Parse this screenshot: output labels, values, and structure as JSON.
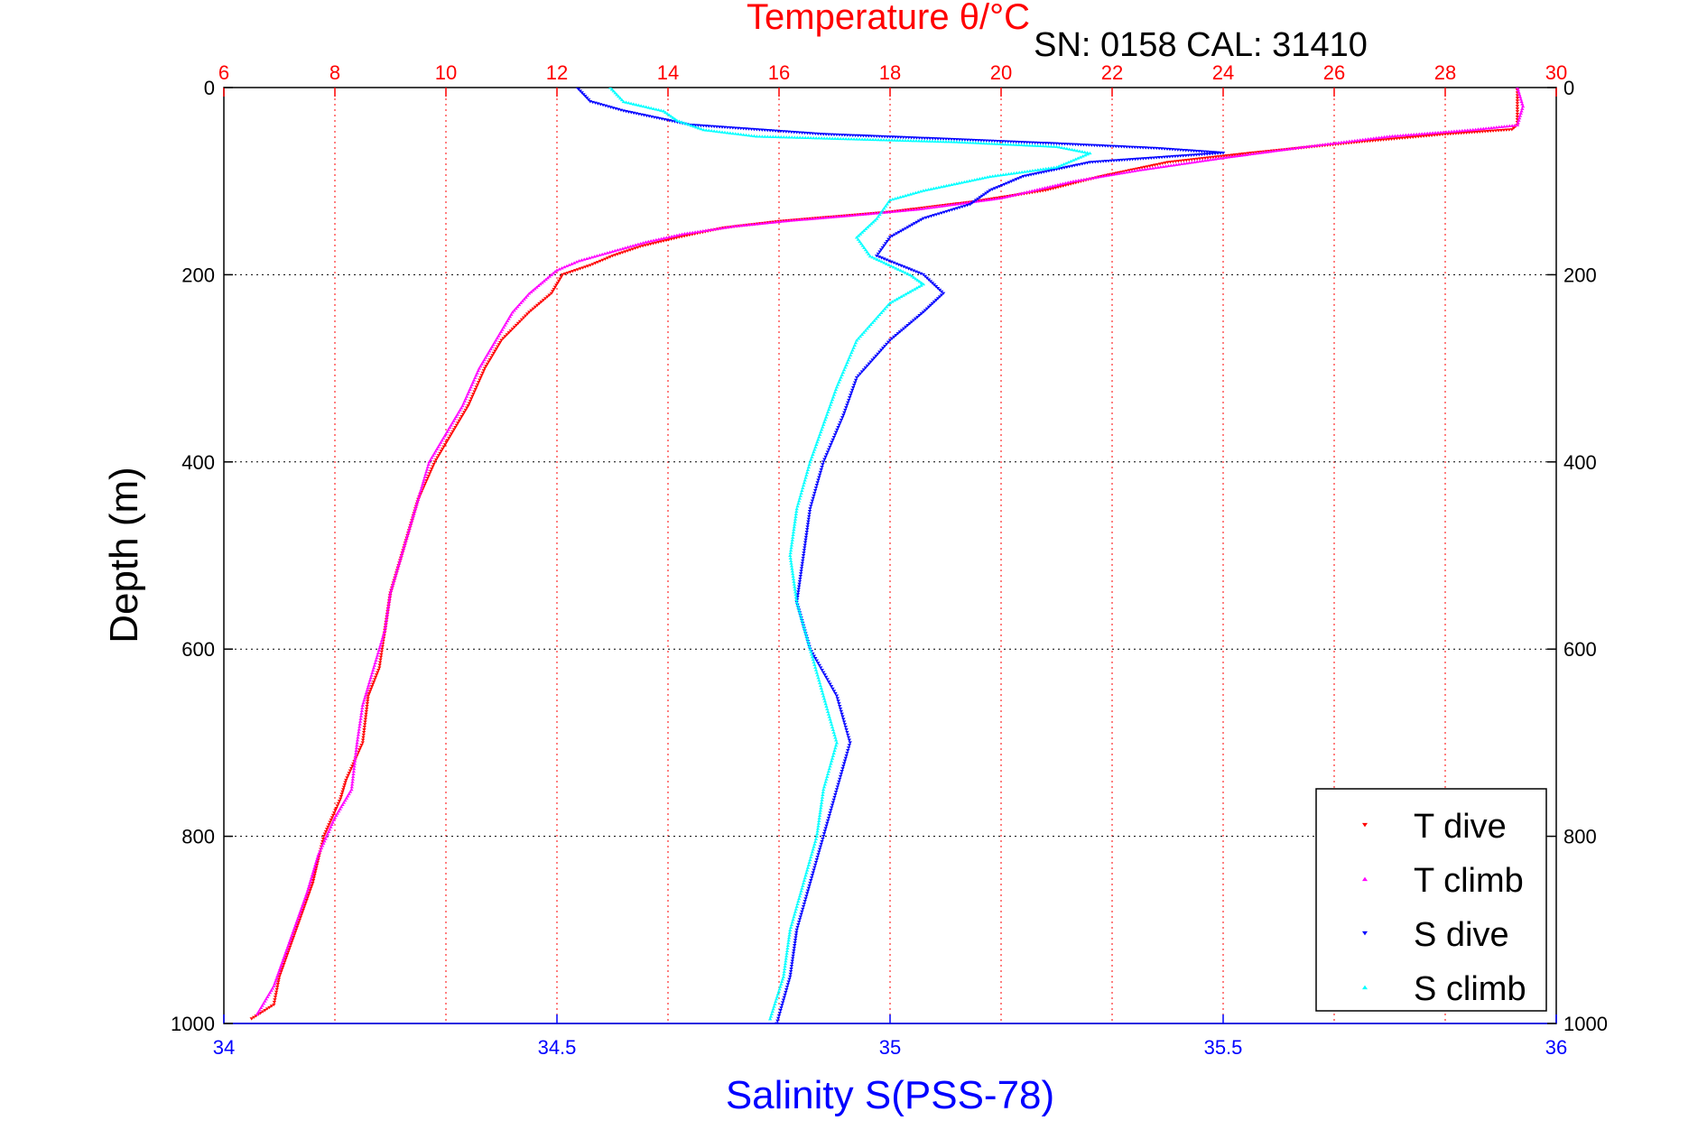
{
  "chart_data": {
    "type": "scatter",
    "title": "Temperature θ/°C",
    "subtitle": "SN: 0158  CAL: 31410",
    "xlabel": "Salinity S(PSS-78)",
    "ylabel": "Depth (m)",
    "temperature_axis": {
      "min": 6,
      "max": 30,
      "ticks": [
        "6",
        "8",
        "10",
        "12",
        "14",
        "16",
        "18",
        "20",
        "22",
        "24",
        "26",
        "28",
        "30"
      ],
      "color": "#ff0000"
    },
    "salinity_axis": {
      "min": 34,
      "max": 36,
      "ticks": [
        "34",
        "34.5",
        "35",
        "35.5",
        "36"
      ],
      "color": "#0000ff"
    },
    "depth_axis": {
      "min": 0,
      "max": 1000,
      "reversed": true,
      "ticks": [
        "0",
        "200",
        "400",
        "600",
        "800",
        "1000"
      ]
    },
    "grid": true,
    "legend": {
      "position": "bottom-right"
    },
    "series": [
      {
        "name": "T dive",
        "axis": "temperature",
        "color": "#ff0000",
        "marker": "triangle-down",
        "points": [
          [
            29.3,
            0
          ],
          [
            29.3,
            20
          ],
          [
            29.3,
            40
          ],
          [
            29.2,
            45
          ],
          [
            28.0,
            50
          ],
          [
            26.5,
            58
          ],
          [
            24.5,
            70
          ],
          [
            23.0,
            80
          ],
          [
            21.8,
            95
          ],
          [
            20.8,
            110
          ],
          [
            19.5,
            122
          ],
          [
            18.0,
            133
          ],
          [
            17.0,
            138
          ],
          [
            16.0,
            143
          ],
          [
            15.0,
            150
          ],
          [
            14.2,
            160
          ],
          [
            13.5,
            170
          ],
          [
            13.0,
            180
          ],
          [
            12.6,
            190
          ],
          [
            12.1,
            200
          ],
          [
            11.9,
            220
          ],
          [
            11.5,
            240
          ],
          [
            11.0,
            270
          ],
          [
            10.7,
            300
          ],
          [
            10.4,
            340
          ],
          [
            10.1,
            370
          ],
          [
            9.8,
            400
          ],
          [
            9.5,
            440
          ],
          [
            9.4,
            460
          ],
          [
            9.2,
            500
          ],
          [
            9.0,
            540
          ],
          [
            8.9,
            580
          ],
          [
            8.8,
            620
          ],
          [
            8.6,
            650
          ],
          [
            8.5,
            700
          ],
          [
            8.2,
            740
          ],
          [
            8.1,
            760
          ],
          [
            7.8,
            800
          ],
          [
            7.6,
            850
          ],
          [
            7.3,
            900
          ],
          [
            7.0,
            950
          ],
          [
            6.9,
            980
          ],
          [
            6.5,
            995
          ]
        ]
      },
      {
        "name": "T climb",
        "axis": "temperature",
        "color": "#ff00ff",
        "marker": "triangle-up",
        "points": [
          [
            29.3,
            0
          ],
          [
            29.4,
            20
          ],
          [
            29.3,
            40
          ],
          [
            28.5,
            45
          ],
          [
            27.0,
            52
          ],
          [
            25.5,
            63
          ],
          [
            24.0,
            75
          ],
          [
            22.5,
            88
          ],
          [
            21.3,
            100
          ],
          [
            20.0,
            118
          ],
          [
            18.5,
            130
          ],
          [
            17.2,
            137
          ],
          [
            16.2,
            142
          ],
          [
            15.2,
            148
          ],
          [
            14.3,
            156
          ],
          [
            13.6,
            165
          ],
          [
            13.0,
            175
          ],
          [
            12.4,
            185
          ],
          [
            12.0,
            195
          ],
          [
            11.8,
            205
          ],
          [
            11.5,
            220
          ],
          [
            11.2,
            240
          ],
          [
            10.9,
            270
          ],
          [
            10.6,
            300
          ],
          [
            10.3,
            340
          ],
          [
            10.0,
            370
          ],
          [
            9.7,
            400
          ],
          [
            9.5,
            440
          ],
          [
            9.4,
            460
          ],
          [
            9.2,
            500
          ],
          [
            9.0,
            540
          ],
          [
            8.9,
            580
          ],
          [
            8.7,
            620
          ],
          [
            8.5,
            660
          ],
          [
            8.4,
            700
          ],
          [
            8.3,
            750
          ],
          [
            8.0,
            780
          ],
          [
            7.7,
            820
          ],
          [
            7.5,
            860
          ],
          [
            7.2,
            910
          ],
          [
            6.9,
            960
          ],
          [
            6.6,
            990
          ]
        ]
      },
      {
        "name": "S dive",
        "axis": "salinity",
        "color": "#0000ff",
        "marker": "triangle-down",
        "points": [
          [
            34.53,
            0
          ],
          [
            34.55,
            15
          ],
          [
            34.6,
            25
          ],
          [
            34.7,
            40
          ],
          [
            34.9,
            50
          ],
          [
            35.08,
            55
          ],
          [
            35.25,
            60
          ],
          [
            35.4,
            65
          ],
          [
            35.5,
            70
          ],
          [
            35.3,
            80
          ],
          [
            35.2,
            95
          ],
          [
            35.15,
            110
          ],
          [
            35.12,
            125
          ],
          [
            35.05,
            140
          ],
          [
            35.0,
            160
          ],
          [
            34.98,
            180
          ],
          [
            35.05,
            200
          ],
          [
            35.08,
            220
          ],
          [
            35.05,
            240
          ],
          [
            35.0,
            270
          ],
          [
            34.95,
            310
          ],
          [
            34.93,
            350
          ],
          [
            34.9,
            400
          ],
          [
            34.88,
            450
          ],
          [
            34.87,
            500
          ],
          [
            34.86,
            550
          ],
          [
            34.88,
            600
          ],
          [
            34.92,
            650
          ],
          [
            34.94,
            700
          ],
          [
            34.92,
            750
          ],
          [
            34.9,
            800
          ],
          [
            34.88,
            850
          ],
          [
            34.86,
            900
          ],
          [
            34.85,
            950
          ],
          [
            34.83,
            1000
          ]
        ]
      },
      {
        "name": "S climb",
        "axis": "salinity",
        "color": "#00ffff",
        "marker": "triangle-up",
        "points": [
          [
            34.58,
            0
          ],
          [
            34.6,
            15
          ],
          [
            34.66,
            25
          ],
          [
            34.68,
            35
          ],
          [
            34.72,
            45
          ],
          [
            34.8,
            52
          ],
          [
            34.95,
            55
          ],
          [
            35.1,
            58
          ],
          [
            35.25,
            63
          ],
          [
            35.3,
            70
          ],
          [
            35.25,
            85
          ],
          [
            35.15,
            95
          ],
          [
            35.05,
            110
          ],
          [
            35.0,
            120
          ],
          [
            34.98,
            140
          ],
          [
            34.95,
            160
          ],
          [
            34.97,
            180
          ],
          [
            35.03,
            200
          ],
          [
            35.05,
            210
          ],
          [
            35.0,
            230
          ],
          [
            34.95,
            270
          ],
          [
            34.92,
            320
          ],
          [
            34.9,
            360
          ],
          [
            34.88,
            400
          ],
          [
            34.86,
            450
          ],
          [
            34.85,
            500
          ],
          [
            34.86,
            550
          ],
          [
            34.88,
            600
          ],
          [
            34.9,
            650
          ],
          [
            34.92,
            700
          ],
          [
            34.9,
            750
          ],
          [
            34.89,
            800
          ],
          [
            34.87,
            850
          ],
          [
            34.85,
            900
          ],
          [
            34.84,
            950
          ],
          [
            34.82,
            995
          ]
        ]
      }
    ]
  }
}
